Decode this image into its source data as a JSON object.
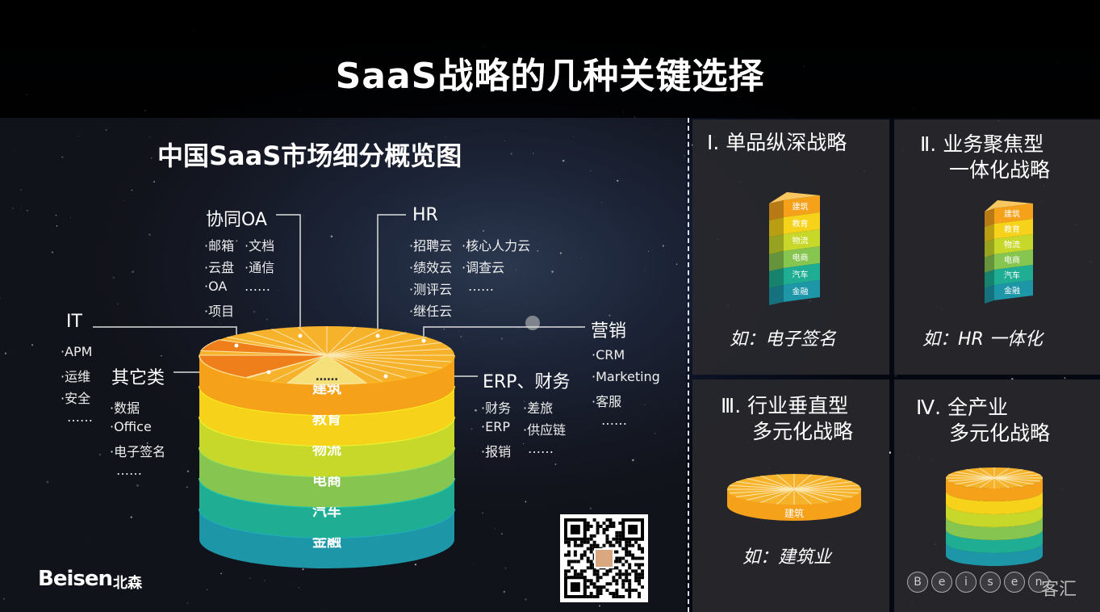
{
  "title": "SaaS战略的几种关键选择",
  "left": {
    "title": "中国SaaS市场细分概览图",
    "categories": {
      "oa": {
        "label": "协同OA",
        "items": [
          "·邮箱",
          "·文档",
          "·云盘",
          "·通信",
          "·OA",
          "……",
          "·项目"
        ]
      },
      "hr": {
        "label": "HR",
        "items": [
          "·招聘云",
          "·核心人力云",
          "·绩效云",
          "·调查云",
          "·测评云",
          "……",
          "·继任云"
        ]
      },
      "it": {
        "label": "IT",
        "items": [
          "·APM",
          "·运维",
          "·安全",
          "……"
        ]
      },
      "other": {
        "label": "其它类",
        "items": [
          "·数据",
          "·Office",
          "·电子签名",
          "……"
        ]
      },
      "marketing": {
        "label": "营销",
        "items": [
          "·CRM",
          "·Marketing",
          "·客服",
          "……"
        ]
      },
      "erp": {
        "label": "ERP、财务",
        "items": [
          "·财务",
          "·差旅",
          "·ERP",
          "·供应链",
          "·报销",
          "……"
        ]
      }
    },
    "center_dots": "……",
    "layers": [
      "建筑",
      "教育",
      "物流",
      "电商",
      "汽车",
      "金融"
    ]
  },
  "layer_colors": [
    "#f5a21a",
    "#f6d21a",
    "#c8d82a",
    "#86c550",
    "#1fae93",
    "#1d96a8"
  ],
  "strategies": [
    {
      "title_line1": "Ⅰ. 单品纵深战略",
      "title_line2": "",
      "example": "如：电子签名"
    },
    {
      "title_line1": "Ⅱ. 业务聚焦型",
      "title_line2": "一体化战略",
      "example": "如：HR 一体化"
    },
    {
      "title_line1": "Ⅲ. 行业垂直型",
      "title_line2": "多元化战略",
      "example": "如：建筑业"
    },
    {
      "title_line1": "Ⅳ. 全产业",
      "title_line2": "多元化战略",
      "example": ""
    }
  ],
  "wedge_labels": [
    "建筑",
    "教育",
    "物流",
    "电商",
    "汽车",
    "金融"
  ],
  "disk_label": "建筑",
  "logo": {
    "text": "Beisen",
    "cn": "北森"
  },
  "watermark": {
    "letters": [
      "B",
      "e",
      "i",
      "s",
      "e",
      "n"
    ],
    "cn": "客汇"
  }
}
